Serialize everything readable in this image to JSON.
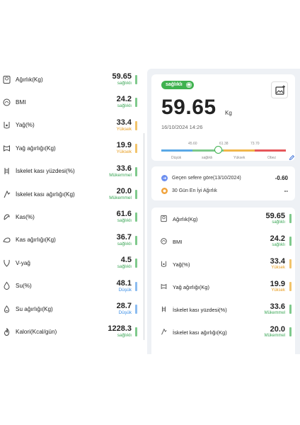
{
  "left_metrics": [
    {
      "icon": "weight-scale-icon",
      "label": "Ağırlık(Kg)",
      "value": "59.65",
      "status": "sağlıklı",
      "level": "green"
    },
    {
      "icon": "bmi-icon",
      "label": "BMI",
      "value": "24.2",
      "status": "sağlıklı",
      "level": "green"
    },
    {
      "icon": "body-fat-icon",
      "label": "Yağ(%)",
      "value": "33.4",
      "status": "Yüksek",
      "level": "orange"
    },
    {
      "icon": "fat-weight-icon",
      "label": "Yağ ağırlığı(Kg)",
      "value": "19.9",
      "status": "Yüksek",
      "level": "orange"
    },
    {
      "icon": "skeletal-muscle-percent-icon",
      "label": "İskelet kası yüzdesi(%)",
      "value": "33.6",
      "status": "Mükemmel",
      "level": "green"
    },
    {
      "icon": "skeletal-muscle-weight-icon",
      "label": "İskelet kası ağırlığı(Kg)",
      "value": "20.0",
      "status": "Mükemmel",
      "level": "green"
    },
    {
      "icon": "muscle-percent-icon",
      "label": "Kas(%)",
      "value": "61.6",
      "status": "sağlıklı",
      "level": "green"
    },
    {
      "icon": "muscle-weight-icon",
      "label": "Kas ağırlığı(Kg)",
      "value": "36.7",
      "status": "sağlıklı",
      "level": "green"
    },
    {
      "icon": "visceral-fat-icon",
      "label": "V-yağ",
      "value": "4.5",
      "status": "sağlıklı",
      "level": "green"
    },
    {
      "icon": "water-percent-icon",
      "label": "Su(%)",
      "value": "48.1",
      "status": "Düşük",
      "level": "blue"
    },
    {
      "icon": "water-weight-icon",
      "label": "Su ağırlığı(Kg)",
      "value": "28.7",
      "status": "Düşük",
      "level": "blue"
    },
    {
      "icon": "calorie-icon",
      "label": "Kalori(Kcal/gün)",
      "value": "1228.3",
      "status": "sağlıklı",
      "level": "green"
    }
  ],
  "summary": {
    "status": "sağlıklı",
    "weight": "59.65",
    "unit": "Kg",
    "date": "16/10/2024 14:26",
    "scale_numbers": [
      "45.60",
      "61.38",
      "73.70"
    ],
    "scale_names": [
      "Düşük",
      "sağlıklı",
      "Yüksek",
      "Obez"
    ],
    "scale_colors": [
      "#5aa9e6",
      "#7cc88a",
      "#f0b64a",
      "#e6575a"
    ],
    "marker_fraction": 0.46
  },
  "compare": [
    {
      "icon": "compare-icon",
      "label": "Geçen sefere göre(13/10/2024)",
      "value": "-0.60",
      "color": "#6d8ff0"
    },
    {
      "icon": "best-weight-icon",
      "label": "30 Gün En İyi Ağırlık",
      "value": "--",
      "color": "#f0a23a"
    }
  ],
  "right_metrics": [
    {
      "icon": "weight-scale-icon",
      "label": "Ağırlık(Kg)",
      "value": "59.65",
      "status": "sağlıklı",
      "level": "green"
    },
    {
      "icon": "bmi-icon",
      "label": "BMI",
      "value": "24.2",
      "status": "sağlıklı",
      "level": "green"
    },
    {
      "icon": "body-fat-icon",
      "label": "Yağ(%)",
      "value": "33.4",
      "status": "Yüksek",
      "level": "orange"
    },
    {
      "icon": "fat-weight-icon",
      "label": "Yağ ağırlığı(Kg)",
      "value": "19.9",
      "status": "Yüksek",
      "level": "orange"
    },
    {
      "icon": "skeletal-muscle-percent-icon",
      "label": "İskelet kası yüzdesi(%)",
      "value": "33.6",
      "status": "Mükemmel",
      "level": "green"
    },
    {
      "icon": "skeletal-muscle-weight-icon",
      "label": "İskelet kası ağırlığı(Kg)",
      "value": "20.0",
      "status": "Mükemmel",
      "level": "green"
    }
  ]
}
